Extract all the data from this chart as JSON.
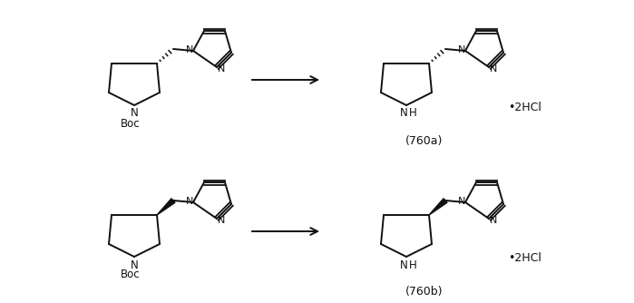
{
  "background_color": "#ffffff",
  "line_color": "#111111",
  "text_color": "#111111",
  "label_760a": "(760a)",
  "label_760b": "(760b)",
  "boc_label": "Boc",
  "hcl_label": "•2HCl",
  "figsize": [
    6.99,
    3.34
  ],
  "dpi": 100
}
